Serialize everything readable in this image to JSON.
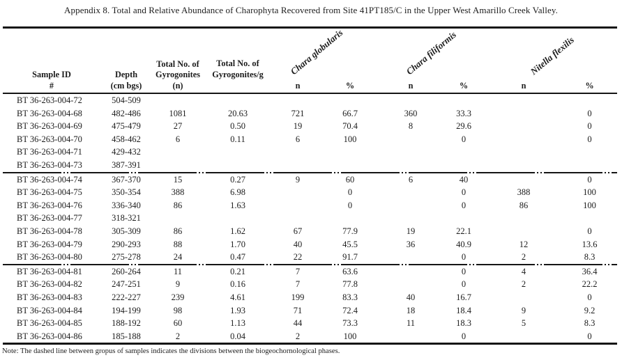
{
  "title": "Appendix 8. Total and Relative Abundance of Charophyta Recovered from Site 41PT185/C in the Upper West Amarillo Creek Valley.",
  "note": "Note: The dashed line between gropus of samples indicates the divisions between the biogeochornological phases.",
  "colors": {
    "ink": "#1c1c1c",
    "rule": "#151515",
    "paper": "#ffffff"
  },
  "table": {
    "headers": {
      "sample_id": [
        "Sample ID",
        "#"
      ],
      "depth": [
        "Depth",
        "(cm bgs)"
      ],
      "total_gyrogonites": [
        "Total No. of",
        "Gyrogonites",
        "(n)"
      ],
      "total_gyrogonites_per_g": [
        "Total No. of",
        "Gyrogonites/g"
      ]
    },
    "species": [
      "Chara globularis",
      "Chara filiformis",
      "Nitella flexilis"
    ],
    "sub_headers": {
      "n": "n",
      "pct": "%"
    },
    "groups": [
      {
        "rows": [
          {
            "cells": [
              "BT 36-263-004-72",
              "504-509",
              "",
              "",
              "",
              "",
              "",
              "",
              "",
              ""
            ]
          },
          {
            "cells": [
              "BT 36-263-004-68",
              "482-486",
              "1081",
              "20.63",
              "721",
              "66.7",
              "360",
              "33.3",
              "",
              "0"
            ]
          },
          {
            "cells": [
              "BT 36-263-004-69",
              "475-479",
              "27",
              "0.50",
              "19",
              "70.4",
              "8",
              "29.6",
              "",
              "0"
            ]
          },
          {
            "cells": [
              "BT 36-263-004-70",
              "458-462",
              "6",
              "0.11",
              "6",
              "100",
              "",
              "0",
              "",
              "0"
            ]
          },
          {
            "cells": [
              "BT 36-263-004-71",
              "429-432",
              "",
              "",
              "",
              "",
              "",
              "",
              "",
              ""
            ]
          },
          {
            "cells": [
              "BT 36-263-004-73",
              "387-391",
              "",
              "",
              "",
              "",
              "",
              "",
              "",
              ""
            ]
          }
        ]
      },
      {
        "rows": [
          {
            "cells": [
              "BT 36-263-004-74",
              "367-370",
              "15",
              "0.27",
              "9",
              "60",
              "6",
              "40",
              "",
              "0"
            ]
          },
          {
            "cells": [
              "BT 36-263-004-75",
              "350-354",
              "388",
              "6.98",
              "",
              "0",
              "",
              "0",
              "388",
              "100"
            ]
          },
          {
            "cells": [
              "BT 36-263-004-76",
              "336-340",
              "86",
              "1.63",
              "",
              "0",
              "",
              "0",
              "86",
              "100"
            ]
          },
          {
            "cells": [
              "BT 36-263-004-77",
              "318-321",
              "",
              "",
              "",
              "",
              "",
              "",
              "",
              ""
            ]
          },
          {
            "cells": [
              "BT 36-263-004-78",
              "305-309",
              "86",
              "1.62",
              "67",
              "77.9",
              "19",
              "22.1",
              "",
              "0"
            ]
          },
          {
            "cells": [
              "BT 36-263-004-79",
              "290-293",
              "88",
              "1.70",
              "40",
              "45.5",
              "36",
              "40.9",
              "12",
              "13.6"
            ]
          },
          {
            "cells": [
              "BT 36-263-004-80",
              "275-278",
              "24",
              "0.47",
              "22",
              "91.7",
              "",
              "0",
              "2",
              "8.3"
            ]
          }
        ]
      },
      {
        "rows": [
          {
            "cells": [
              "BT 36-263-004-81",
              "260-264",
              "11",
              "0.21",
              "7",
              "63.6",
              "",
              "0",
              "4",
              "36.4"
            ]
          },
          {
            "cells": [
              "BT 36-263-004-82",
              "247-251",
              "9",
              "0.16",
              "7",
              "77.8",
              "",
              "0",
              "2",
              "22.2"
            ]
          },
          {
            "cells": [
              "BT 36-263-004-83",
              "222-227",
              "239",
              "4.61",
              "199",
              "83.3",
              "40",
              "16.7",
              "",
              "0"
            ]
          },
          {
            "cells": [
              "BT 36-263-004-84",
              "194-199",
              "98",
              "1.93",
              "71",
              "72.4",
              "18",
              "18.4",
              "9",
              "9.2"
            ]
          },
          {
            "cells": [
              "BT 36-263-004-85",
              "188-192",
              "60",
              "1.13",
              "44",
              "73.3",
              "11",
              "18.3",
              "5",
              "8.3"
            ]
          },
          {
            "cells": [
              "BT 36-263-004-86",
              "185-188",
              "2",
              "0.04",
              "2",
              "100",
              "",
              "0",
              "",
              "0"
            ]
          }
        ]
      }
    ]
  }
}
